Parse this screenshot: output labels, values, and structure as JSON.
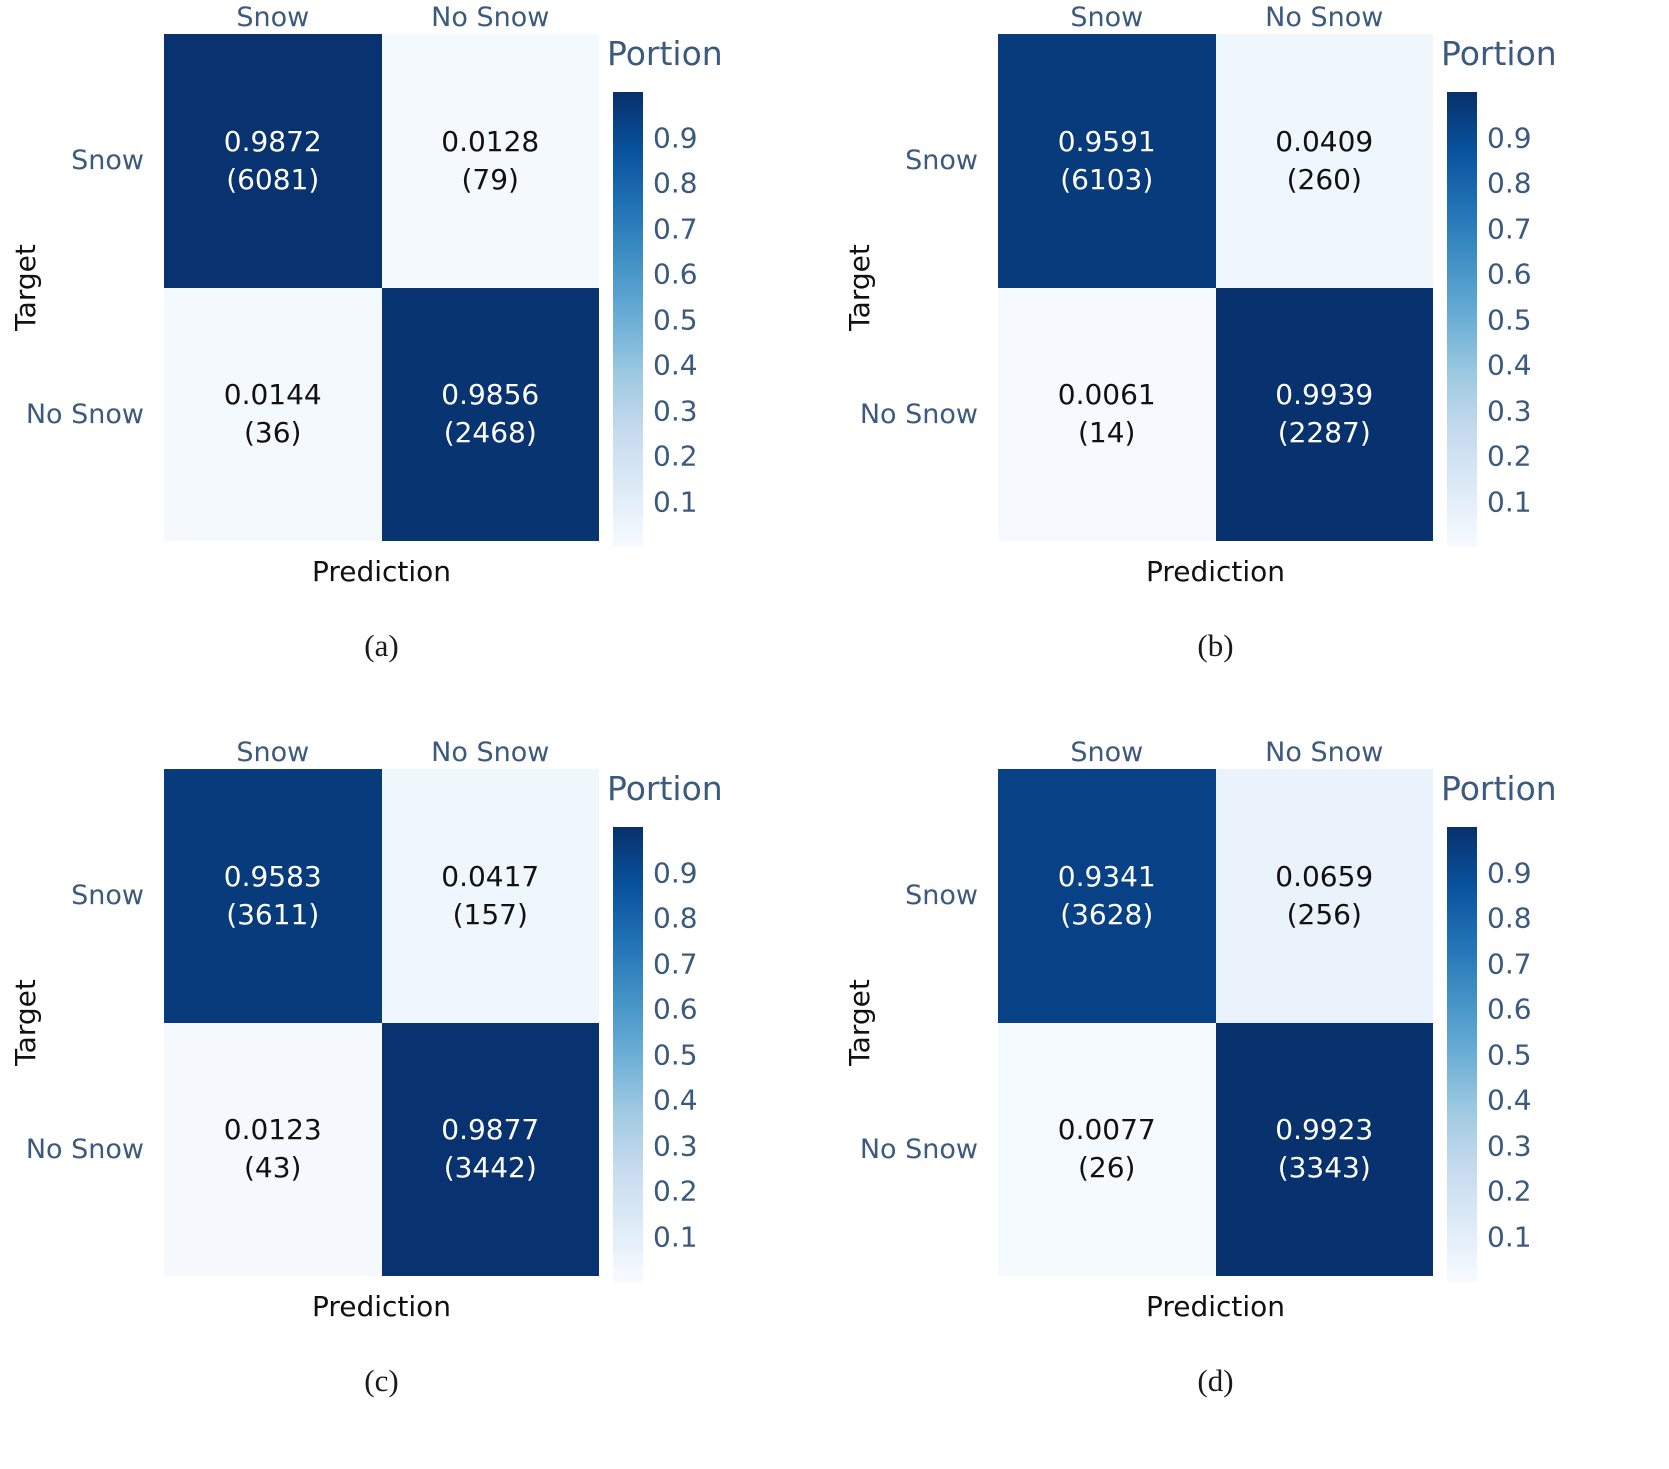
{
  "chart_data": {
    "type": "heatmap",
    "subtype": "confusion-matrix",
    "colormap": "Blues",
    "colormap_stops": [
      [
        0,
        "#f7fbff"
      ],
      [
        0.125,
        "#deebf7"
      ],
      [
        0.25,
        "#c6dbef"
      ],
      [
        0.375,
        "#9ecae1"
      ],
      [
        0.5,
        "#6baed6"
      ],
      [
        0.625,
        "#4292c6"
      ],
      [
        0.75,
        "#2171b5"
      ],
      [
        0.875,
        "#08519c"
      ],
      [
        1,
        "#08306b"
      ]
    ],
    "x_categories": [
      "Snow",
      "No Snow"
    ],
    "y_categories": [
      "Snow",
      "No Snow"
    ],
    "xlabel": "Prediction",
    "ylabel": "Target",
    "colorbar": {
      "title": "Portion",
      "ticks": [
        0.9,
        0.8,
        0.7,
        0.6,
        0.5,
        0.4,
        0.3,
        0.2,
        0.1
      ],
      "range": [
        0,
        1
      ]
    },
    "panels": [
      {
        "caption": "(a)",
        "matrix": [
          [
            0.9872,
            0.0128
          ],
          [
            0.0144,
            0.9856
          ]
        ],
        "counts": [
          [
            6081,
            79
          ],
          [
            36,
            2468
          ]
        ]
      },
      {
        "caption": "(b)",
        "matrix": [
          [
            0.9591,
            0.0409
          ],
          [
            0.0061,
            0.9939
          ]
        ],
        "counts": [
          [
            6103,
            260
          ],
          [
            14,
            2287
          ]
        ]
      },
      {
        "caption": "(c)",
        "matrix": [
          [
            0.9583,
            0.0417
          ],
          [
            0.0123,
            0.9877
          ]
        ],
        "counts": [
          [
            3611,
            157
          ],
          [
            43,
            3442
          ]
        ]
      },
      {
        "caption": "(d)",
        "matrix": [
          [
            0.9341,
            0.0659
          ],
          [
            0.0077,
            0.9923
          ]
        ],
        "counts": [
          [
            3628,
            256
          ],
          [
            26,
            3343
          ]
        ]
      }
    ]
  },
  "colors": {
    "axis_label_slate": "#3b5a7e",
    "axis_title_black": "#111111",
    "cell_text_light": "#ffffff",
    "cell_text_dark": "#111111",
    "background": "#ffffff"
  }
}
